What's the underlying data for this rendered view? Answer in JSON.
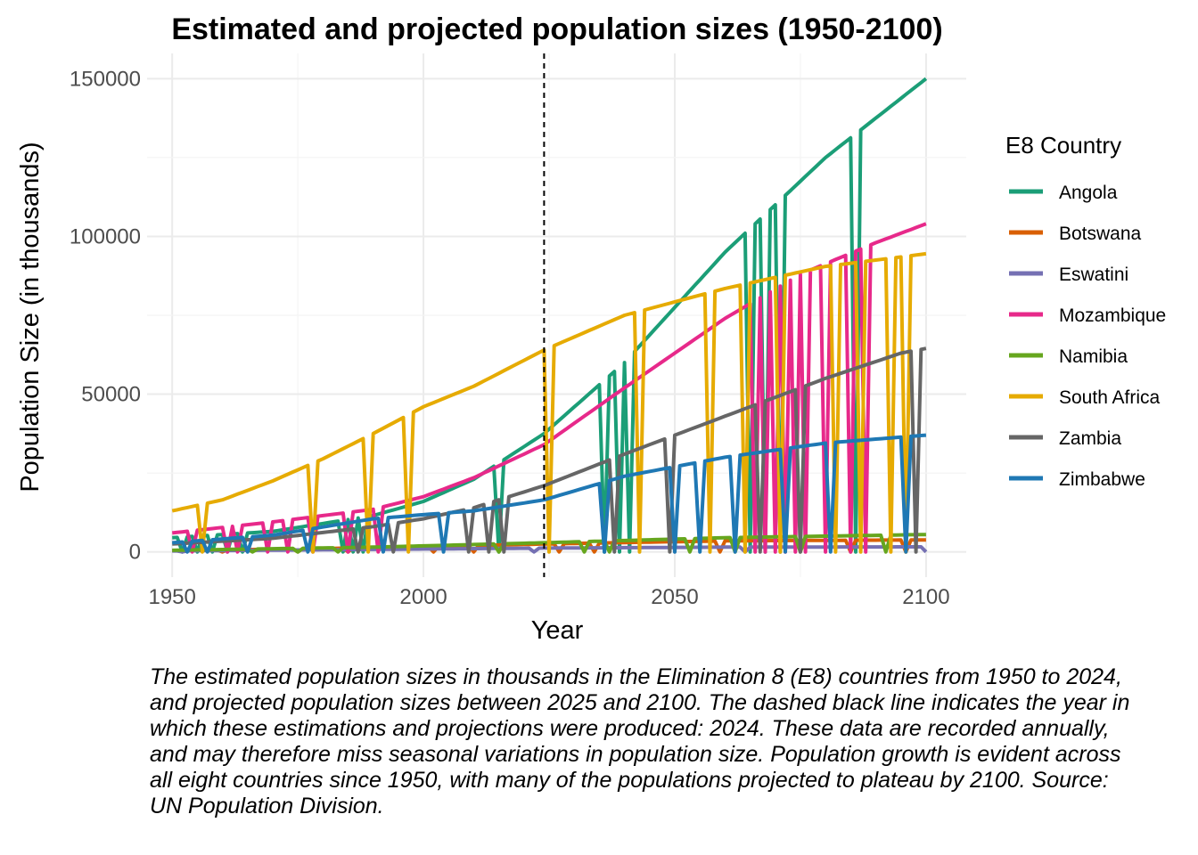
{
  "chart_data": {
    "type": "line",
    "title": "Estimated and projected population sizes (1950-2100)",
    "xlabel": "Year",
    "ylabel": "Population Size (in thousands)",
    "xlim": [
      1945,
      2108
    ],
    "ylim": [
      -8000,
      158000
    ],
    "x_ticks": [
      1950,
      2000,
      2050,
      2100
    ],
    "x_tick_labels": [
      "1950",
      "2000",
      "2050",
      "2100"
    ],
    "y_ticks": [
      0,
      50000,
      100000,
      150000
    ],
    "y_tick_labels": [
      "0",
      "50000",
      "100000",
      "150000"
    ],
    "grid": true,
    "reference_line": {
      "x": 2024,
      "style": "dashed",
      "color": "#000000"
    },
    "legend_title": "E8 Country",
    "legend_position": "right",
    "series": [
      {
        "name": "Angola",
        "color": "#1b9e77",
        "anchors": [
          [
            1950,
            4500
          ],
          [
            1970,
            6500
          ],
          [
            1990,
            11500
          ],
          [
            2000,
            16000
          ],
          [
            2010,
            23000
          ],
          [
            2024,
            37500
          ],
          [
            2040,
            60000
          ],
          [
            2060,
            95000
          ],
          [
            2080,
            125000
          ],
          [
            2100,
            150000
          ]
        ],
        "dips": [
          1952,
          1955,
          1958,
          1961,
          1964,
          1984,
          1986,
          1988,
          2015,
          2036,
          2039,
          2041,
          2065,
          2068,
          2071,
          2086
        ]
      },
      {
        "name": "Botswana",
        "color": "#d95f02",
        "anchors": [
          [
            1950,
            400
          ],
          [
            1990,
            1300
          ],
          [
            2024,
            2500
          ],
          [
            2060,
            3500
          ],
          [
            2100,
            3800
          ]
        ],
        "dips": [
          1960,
          1975,
          1985,
          2002,
          2010,
          2027,
          2034,
          2059,
          2085,
          2096
        ]
      },
      {
        "name": "Eswatini",
        "color": "#7570b3",
        "anchors": [
          [
            1950,
            300
          ],
          [
            2024,
            1200
          ],
          [
            2060,
            1500
          ],
          [
            2100,
            1600
          ]
        ],
        "dips": [
          1952,
          2022,
          2064,
          2100
        ]
      },
      {
        "name": "Mozambique",
        "color": "#e7298a",
        "anchors": [
          [
            1950,
            6000
          ],
          [
            1970,
            9500
          ],
          [
            1990,
            13500
          ],
          [
            2000,
            17500
          ],
          [
            2010,
            23500
          ],
          [
            2024,
            34000
          ],
          [
            2040,
            52000
          ],
          [
            2060,
            74000
          ],
          [
            2075,
            88000
          ],
          [
            2090,
            98000
          ],
          [
            2100,
            104000
          ]
        ],
        "dips": [
          1954,
          1961,
          1963,
          1969,
          1973,
          1978,
          1985,
          1991,
          2066,
          2068,
          2070,
          2072,
          2074,
          2076,
          2080,
          2085,
          2088
        ]
      },
      {
        "name": "Namibia",
        "color": "#66a61e",
        "anchors": [
          [
            1950,
            500
          ],
          [
            1990,
            1500
          ],
          [
            2024,
            2900
          ],
          [
            2060,
            4500
          ],
          [
            2100,
            5500
          ]
        ],
        "dips": [
          1966,
          1975,
          1983,
          2015,
          2032,
          2037,
          2053,
          2062,
          2075,
          2092
        ]
      },
      {
        "name": "South Africa",
        "color": "#e6ab02",
        "anchors": [
          [
            1950,
            13000
          ],
          [
            1960,
            16500
          ],
          [
            1970,
            22500
          ],
          [
            1980,
            29500
          ],
          [
            1990,
            37500
          ],
          [
            2000,
            46000
          ],
          [
            2010,
            52500
          ],
          [
            2024,
            64000
          ],
          [
            2040,
            75000
          ],
          [
            2060,
            83500
          ],
          [
            2080,
            90500
          ],
          [
            2100,
            94500
          ]
        ],
        "dips": [
          1956,
          1978,
          1989,
          1997,
          2025,
          2043,
          2057,
          2064,
          2071,
          2082,
          2087,
          2093,
          2096
        ]
      },
      {
        "name": "Zambia",
        "color": "#666666",
        "anchors": [
          [
            1950,
            2500
          ],
          [
            1970,
            4300
          ],
          [
            1990,
            8000
          ],
          [
            2000,
            10500
          ],
          [
            2010,
            14000
          ],
          [
            2024,
            21000
          ],
          [
            2040,
            31000
          ],
          [
            2060,
            43000
          ],
          [
            2080,
            55000
          ],
          [
            2095,
            63000
          ],
          [
            2100,
            64500
          ]
        ],
        "dips": [
          1987,
          1994,
          2009,
          2013,
          2016,
          2038,
          2049,
          2067,
          2075,
          2098
        ]
      },
      {
        "name": "Zimbabwe",
        "color": "#1f78b4",
        "anchors": [
          [
            1950,
            2900
          ],
          [
            1970,
            5300
          ],
          [
            1990,
            10500
          ],
          [
            2000,
            11800
          ],
          [
            2010,
            13000
          ],
          [
            2024,
            16500
          ],
          [
            2040,
            24000
          ],
          [
            2060,
            30000
          ],
          [
            2080,
            34500
          ],
          [
            2100,
            37000
          ]
        ],
        "dips": [
          1953,
          1957,
          1965,
          1977,
          1992,
          2004,
          2036,
          2050,
          2055,
          2062,
          2072,
          2081,
          2096
        ]
      }
    ]
  },
  "caption": "The estimated population sizes in thousands in the Elimination 8 (E8) countries from 1950 to 2024, and projected population sizes between 2025 and 2100. The dashed black line indicates the year in which these estimations and projections were produced: 2024. These data are recorded annually, and may therefore miss seasonal variations in population size. Population growth is evident across all eight countries since 1950, with many of the populations projected to plateau by 2100. Source: UN Population Division."
}
